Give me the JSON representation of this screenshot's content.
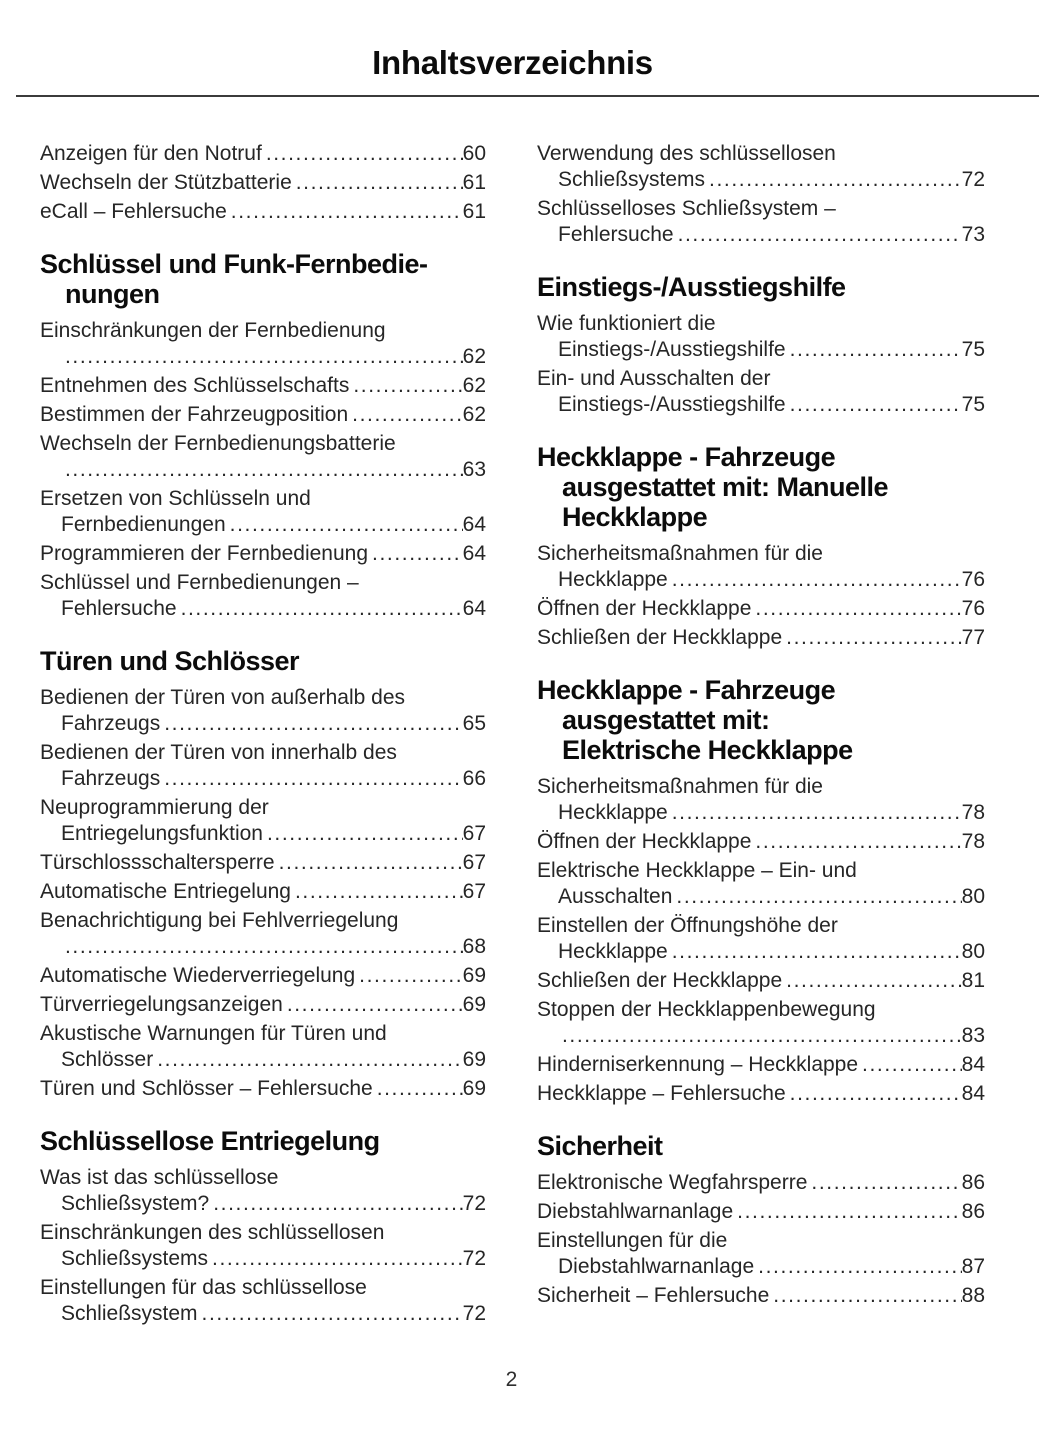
{
  "document": {
    "title": "Inhaltsverzeichnis",
    "footer_page_number": "2"
  },
  "colors": {
    "background": "#ffffff",
    "text": "#262626",
    "heading": "#0c0c0c",
    "rule": "#3b3b3b"
  },
  "columns": [
    {
      "side": "left",
      "blocks": [
        {
          "type": "entry",
          "line1": "Anzeigen für den Notruf",
          "page": "60"
        },
        {
          "type": "entry",
          "line1": "Wechseln der Stützbatterie",
          "page": "61"
        },
        {
          "type": "entry",
          "line1": "eCall – Fehlersuche",
          "page": "61"
        },
        {
          "type": "heading",
          "lines": [
            "Schlüssel und Funk-Fernbedie-",
            "nungen"
          ]
        },
        {
          "type": "entry",
          "line1": "Einschränkungen der Fernbedienung",
          "line2": "",
          "page": "62"
        },
        {
          "type": "entry",
          "line1": "Entnehmen des Schlüsselschafts",
          "page": "62"
        },
        {
          "type": "entry",
          "line1": "Bestimmen der Fahrzeugposition",
          "page": "62"
        },
        {
          "type": "entry",
          "line1": "Wechseln der Fernbedienungsbatterie",
          "line2": "",
          "page": "63"
        },
        {
          "type": "entry",
          "line1": "Ersetzen von Schlüsseln und",
          "line2": "Fernbedienungen",
          "page": "64"
        },
        {
          "type": "entry",
          "line1": "Programmieren der Fernbedienung",
          "page": "64"
        },
        {
          "type": "entry",
          "line1": "Schlüssel und Fernbedienungen –",
          "line2": "Fehlersuche",
          "page": "64"
        },
        {
          "type": "heading",
          "lines": [
            "Türen und Schlösser"
          ]
        },
        {
          "type": "entry",
          "line1": "Bedienen der Türen von außerhalb des",
          "line2": "Fahrzeugs",
          "page": "65"
        },
        {
          "type": "entry",
          "line1": "Bedienen der Türen von innerhalb des",
          "line2": "Fahrzeugs",
          "page": "66"
        },
        {
          "type": "entry",
          "line1": "Neuprogrammierung der",
          "line2": "Entriegelungsfunktion",
          "page": "67"
        },
        {
          "type": "entry",
          "line1": "Türschlossschaltersperre",
          "page": "67"
        },
        {
          "type": "entry",
          "line1": "Automatische Entriegelung",
          "page": "67"
        },
        {
          "type": "entry",
          "line1": "Benachrichtigung bei Fehlverriegelung",
          "line2": "",
          "page": "68"
        },
        {
          "type": "entry",
          "line1": "Automatische Wiederverriegelung",
          "page": "69"
        },
        {
          "type": "entry",
          "line1": "Türverriegelungsanzeigen",
          "page": "69"
        },
        {
          "type": "entry",
          "line1": "Akustische Warnungen für Türen und",
          "line2": "Schlösser",
          "page": "69"
        },
        {
          "type": "entry",
          "line1": "Türen und Schlösser – Fehlersuche",
          "page": "69"
        },
        {
          "type": "heading",
          "lines": [
            "Schlüssellose Entriegelung"
          ]
        },
        {
          "type": "entry",
          "line1": "Was ist das schlüssellose",
          "line2": "Schließsystem?",
          "page": "72"
        },
        {
          "type": "entry",
          "line1": "Einschränkungen des schlüssellosen",
          "line2": "Schließsystems",
          "page": "72"
        },
        {
          "type": "entry",
          "line1": "Einstellungen für das schlüssellose",
          "line2": "Schließsystem",
          "page": "72"
        }
      ]
    },
    {
      "side": "right",
      "blocks": [
        {
          "type": "entry",
          "line1": "Verwendung des schlüssellosen",
          "line2": "Schließsystems",
          "page": "72"
        },
        {
          "type": "entry",
          "line1": "Schlüsselloses Schließsystem –",
          "line2": "Fehlersuche",
          "page": "73"
        },
        {
          "type": "heading",
          "lines": [
            "Einstiegs-/Ausstiegshilfe"
          ]
        },
        {
          "type": "entry",
          "line1": "Wie funktioniert die",
          "line2": "Einstiegs-/Ausstiegshilfe",
          "page": "75"
        },
        {
          "type": "entry",
          "line1": "Ein- und Ausschalten der",
          "line2": "Einstiegs-/Ausstiegshilfe",
          "page": "75"
        },
        {
          "type": "heading",
          "lines": [
            "Heckklappe - Fahrzeuge",
            "ausgestattet mit: Manuelle",
            "Heckklappe"
          ]
        },
        {
          "type": "entry",
          "line1": "Sicherheitsmaßnahmen für die",
          "line2": "Heckklappe",
          "page": "76"
        },
        {
          "type": "entry",
          "line1": "Öffnen der Heckklappe",
          "page": "76"
        },
        {
          "type": "entry",
          "line1": "Schließen der Heckklappe",
          "page": "77"
        },
        {
          "type": "heading",
          "lines": [
            "Heckklappe - Fahrzeuge",
            "ausgestattet mit:",
            "Elektrische Heckklappe"
          ]
        },
        {
          "type": "entry",
          "line1": "Sicherheitsmaßnahmen für die",
          "line2": "Heckklappe",
          "page": "78"
        },
        {
          "type": "entry",
          "line1": "Öffnen der Heckklappe",
          "page": "78"
        },
        {
          "type": "entry",
          "line1": "Elektrische Heckklappe – Ein- und",
          "line2": "Ausschalten",
          "page": "80"
        },
        {
          "type": "entry",
          "line1": "Einstellen der Öffnungshöhe der",
          "line2": "Heckklappe",
          "page": "80"
        },
        {
          "type": "entry",
          "line1": "Schließen der Heckklappe",
          "page": "81"
        },
        {
          "type": "entry",
          "line1": "Stoppen der Heckklappenbewegung",
          "line2": "",
          "page": "83"
        },
        {
          "type": "entry",
          "line1": "Hinderniserkennung – Heckklappe",
          "page": "84"
        },
        {
          "type": "entry",
          "line1": "Heckklappe – Fehlersuche",
          "page": "84"
        },
        {
          "type": "heading",
          "lines": [
            "Sicherheit"
          ]
        },
        {
          "type": "entry",
          "line1": "Elektronische Wegfahrsperre",
          "page": "86"
        },
        {
          "type": "entry",
          "line1": "Diebstahlwarnanlage",
          "page": "86"
        },
        {
          "type": "entry",
          "line1": "Einstellungen für die",
          "line2": "Diebstahlwarnanlage",
          "page": "87"
        },
        {
          "type": "entry",
          "line1": "Sicherheit – Fehlersuche",
          "page": "88"
        }
      ]
    }
  ]
}
